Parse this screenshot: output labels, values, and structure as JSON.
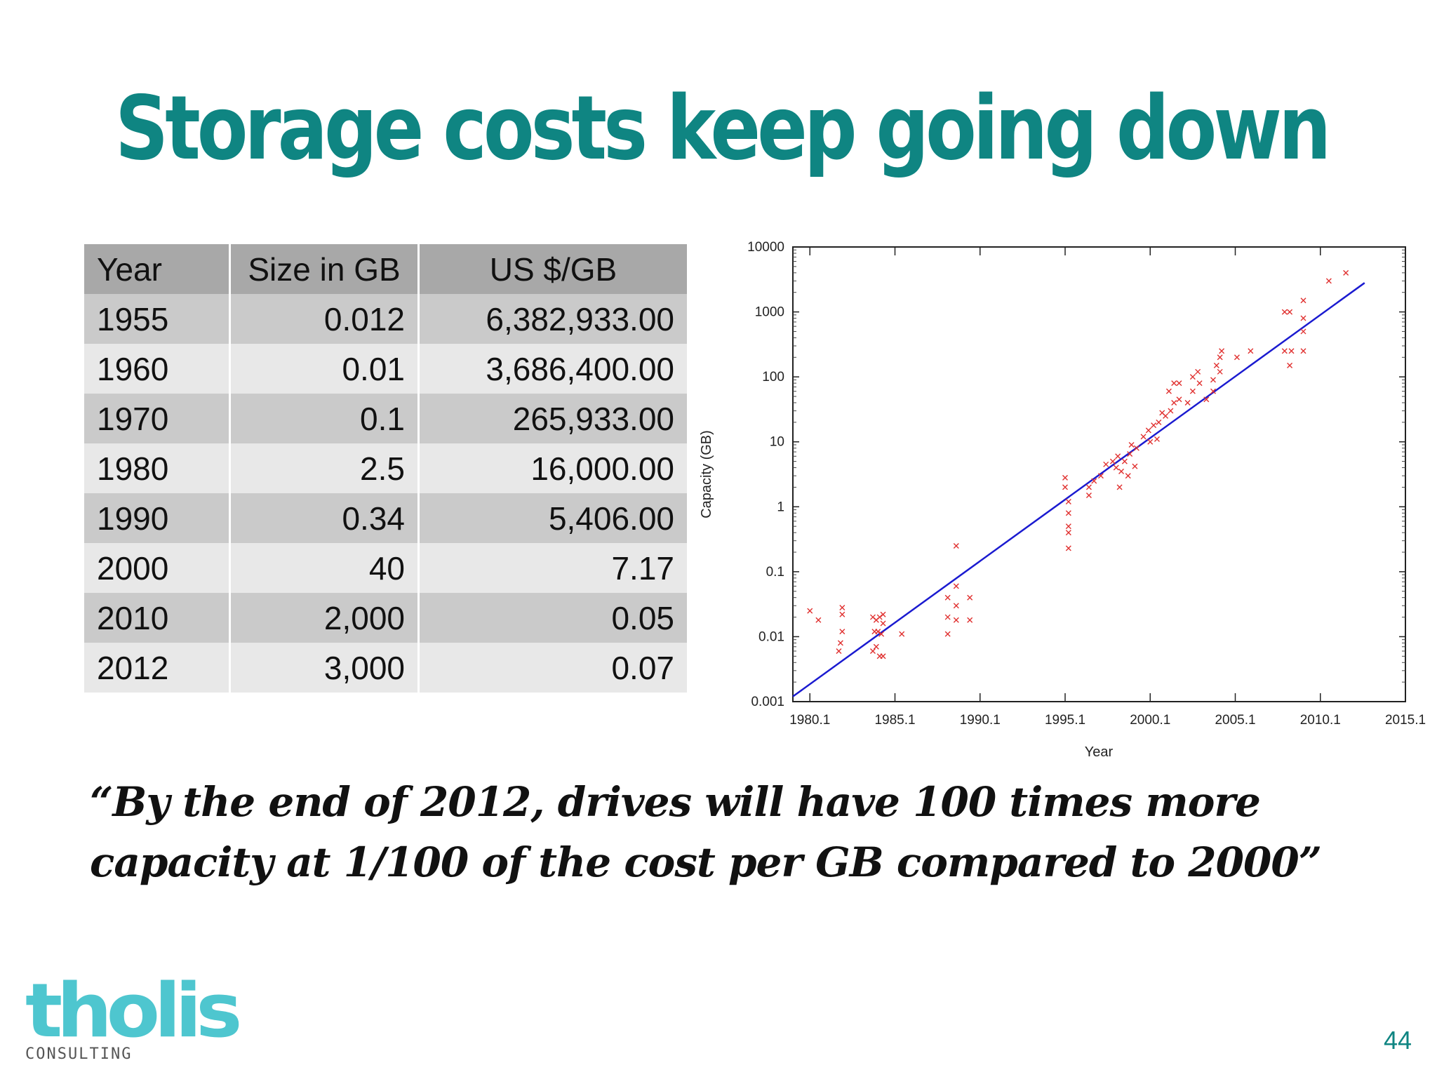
{
  "title": "Storage costs keep going down",
  "table": {
    "headers": [
      "Year",
      "Size in GB",
      "US $/GB"
    ],
    "rows": [
      [
        "1955",
        "0.012",
        "6,382,933.00"
      ],
      [
        "1960",
        "0.01",
        "3,686,400.00"
      ],
      [
        "1970",
        "0.1",
        "265,933.00"
      ],
      [
        "1980",
        "2.5",
        "16,000.00"
      ],
      [
        "1990",
        "0.34",
        "5,406.00"
      ],
      [
        "2000",
        "40",
        "7.17"
      ],
      [
        "2010",
        "2,000",
        "0.05"
      ],
      [
        "2012",
        "3,000",
        "0.07"
      ]
    ]
  },
  "chart_data": {
    "type": "scatter",
    "xlabel": "Year",
    "ylabel": "Capacity (GB)",
    "xlim": [
      1979.1,
      2015.1
    ],
    "ylim": [
      0.001,
      10000
    ],
    "y_scale": "log",
    "x_ticks": [
      "1980.1",
      "1985.1",
      "1990.1",
      "1995.1",
      "2000.1",
      "2005.1",
      "2010.1",
      "2015.1"
    ],
    "y_ticks": [
      "0.001",
      "0.01",
      "0.1",
      "1",
      "10",
      "100",
      "1000",
      "10000"
    ],
    "grid": false,
    "point_color": "#e0302f",
    "line_color": "#1a1ad0",
    "trend_line": [
      [
        1979.1,
        0.0012
      ],
      [
        2012.7,
        2800
      ]
    ],
    "points": [
      [
        1980.1,
        0.025
      ],
      [
        1980.6,
        0.018
      ],
      [
        1982.0,
        0.028
      ],
      [
        1982.0,
        0.022
      ],
      [
        1982.0,
        0.012
      ],
      [
        1981.9,
        0.008
      ],
      [
        1981.8,
        0.006
      ],
      [
        1983.8,
        0.02
      ],
      [
        1984.0,
        0.018
      ],
      [
        1984.2,
        0.02
      ],
      [
        1984.4,
        0.022
      ],
      [
        1983.9,
        0.012
      ],
      [
        1984.1,
        0.012
      ],
      [
        1984.3,
        0.011
      ],
      [
        1984.0,
        0.007
      ],
      [
        1984.2,
        0.005
      ],
      [
        1983.8,
        0.006
      ],
      [
        1984.4,
        0.005
      ],
      [
        1984.4,
        0.016
      ],
      [
        1985.5,
        0.011
      ],
      [
        1988.2,
        0.04
      ],
      [
        1988.2,
        0.02
      ],
      [
        1988.2,
        0.011
      ],
      [
        1988.7,
        0.25
      ],
      [
        1988.7,
        0.06
      ],
      [
        1988.7,
        0.03
      ],
      [
        1988.7,
        0.018
      ],
      [
        1989.5,
        0.04
      ],
      [
        1989.5,
        0.018
      ],
      [
        1995.1,
        2.8
      ],
      [
        1995.1,
        2.0
      ],
      [
        1995.3,
        1.2
      ],
      [
        1995.3,
        0.8
      ],
      [
        1995.3,
        0.5
      ],
      [
        1995.3,
        0.4
      ],
      [
        1995.3,
        0.23
      ],
      [
        1996.5,
        2.0
      ],
      [
        1996.8,
        2.5
      ],
      [
        1996.5,
        1.5
      ],
      [
        1997.2,
        3.0
      ],
      [
        1997.5,
        4.5
      ],
      [
        1997.9,
        5.0
      ],
      [
        1998.2,
        6.0
      ],
      [
        1998.1,
        4.0
      ],
      [
        1998.4,
        3.5
      ],
      [
        1998.6,
        5.0
      ],
      [
        1998.9,
        6.5
      ],
      [
        1999.2,
        4.2
      ],
      [
        1999.3,
        8.0
      ],
      [
        1998.3,
        2.0
      ],
      [
        1998.8,
        3.0
      ],
      [
        1999.0,
        9.0
      ],
      [
        1999.7,
        12.0
      ],
      [
        2000.0,
        15.0
      ],
      [
        2000.3,
        18.0
      ],
      [
        2000.6,
        20.0
      ],
      [
        2000.1,
        10.0
      ],
      [
        2000.5,
        11.0
      ],
      [
        2000.8,
        28.0
      ],
      [
        2001.0,
        25.0
      ],
      [
        2001.3,
        30.0
      ],
      [
        2001.5,
        40.0
      ],
      [
        2001.8,
        45.0
      ],
      [
        2001.2,
        60.0
      ],
      [
        2001.5,
        80.0
      ],
      [
        2001.8,
        80.0
      ],
      [
        2002.3,
        40.0
      ],
      [
        2002.6,
        60.0
      ],
      [
        2002.6,
        100.0
      ],
      [
        2002.9,
        120.0
      ],
      [
        2003.0,
        80.0
      ],
      [
        2003.4,
        45.0
      ],
      [
        2003.8,
        90.0
      ],
      [
        2003.8,
        60.0
      ],
      [
        2004.0,
        150.0
      ],
      [
        2004.2,
        120.0
      ],
      [
        2004.3,
        250.0
      ],
      [
        2004.2,
        200.0
      ],
      [
        2005.2,
        200.0
      ],
      [
        2006.0,
        250.0
      ],
      [
        2008.0,
        1000.0
      ],
      [
        2008.3,
        1000.0
      ],
      [
        2008.0,
        250.0
      ],
      [
        2008.4,
        250.0
      ],
      [
        2008.3,
        150.0
      ],
      [
        2009.1,
        1500.0
      ],
      [
        2009.1,
        800.0
      ],
      [
        2009.1,
        500.0
      ],
      [
        2009.1,
        250.0
      ],
      [
        2010.6,
        3000.0
      ],
      [
        2011.6,
        4000.0
      ]
    ]
  },
  "quote": {
    "line1": "“By the end of 2012, drives will have 100 times more",
    "line2": "capacity at 1/100 of the cost per GB compared to 2000”"
  },
  "logo": {
    "wordmark": "tholis",
    "tagline": "CONSULTING"
  },
  "page_number": "44"
}
